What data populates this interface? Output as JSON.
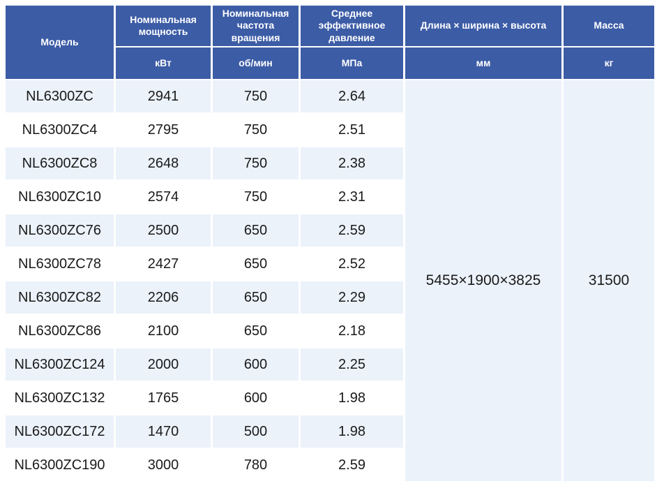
{
  "chart_data": {
    "type": "table",
    "columns": [
      "Модель",
      "Номинальная мощность",
      "Номинальная частота вращения",
      "Среднее эффективное давление",
      "Длина × ширина × высота",
      "Масса"
    ],
    "units": [
      "",
      "кВт",
      "об/мин",
      "МПа",
      "мм",
      "кг"
    ],
    "rows": [
      {
        "model": "NL6300ZC",
        "power_kw": 2941,
        "speed_rpm": 750,
        "pressure_mpa": 2.64
      },
      {
        "model": "NL6300ZC4",
        "power_kw": 2795,
        "speed_rpm": 750,
        "pressure_mpa": 2.51
      },
      {
        "model": "NL6300ZC8",
        "power_kw": 2648,
        "speed_rpm": 750,
        "pressure_mpa": 2.38
      },
      {
        "model": "NL6300ZC10",
        "power_kw": 2574,
        "speed_rpm": 750,
        "pressure_mpa": 2.31
      },
      {
        "model": "NL6300ZC76",
        "power_kw": 2500,
        "speed_rpm": 650,
        "pressure_mpa": 2.59
      },
      {
        "model": "NL6300ZC78",
        "power_kw": 2427,
        "speed_rpm": 650,
        "pressure_mpa": 2.52
      },
      {
        "model": "NL6300ZC82",
        "power_kw": 2206,
        "speed_rpm": 650,
        "pressure_mpa": 2.29
      },
      {
        "model": "NL6300ZC86",
        "power_kw": 2100,
        "speed_rpm": 650,
        "pressure_mpa": 2.18
      },
      {
        "model": "NL6300ZC124",
        "power_kw": 2000,
        "speed_rpm": 600,
        "pressure_mpa": 2.25
      },
      {
        "model": "NL6300ZC132",
        "power_kw": 1765,
        "speed_rpm": 600,
        "pressure_mpa": 1.98
      },
      {
        "model": "NL6300ZC172",
        "power_kw": 1470,
        "speed_rpm": 500,
        "pressure_mpa": 1.98
      },
      {
        "model": "NL6300ZC190",
        "power_kw": 3000,
        "speed_rpm": 780,
        "pressure_mpa": 2.59
      }
    ],
    "merged": {
      "dimensions_mm": "5455×1900×3825",
      "mass_kg": 31500,
      "span": "all 12 rows"
    },
    "layout_hints": {
      "header_rows": 2,
      "alternating_row_shading": true,
      "grid": "white gaps between cells"
    }
  },
  "colors": {
    "header_bg": "#3c5ca6",
    "header_text": "#ffffff",
    "row_alt_bg": "#ebf2fa",
    "row_bg": "#ffffff",
    "body_text": "#1a1a1a",
    "page_bg": "#ffffff"
  }
}
